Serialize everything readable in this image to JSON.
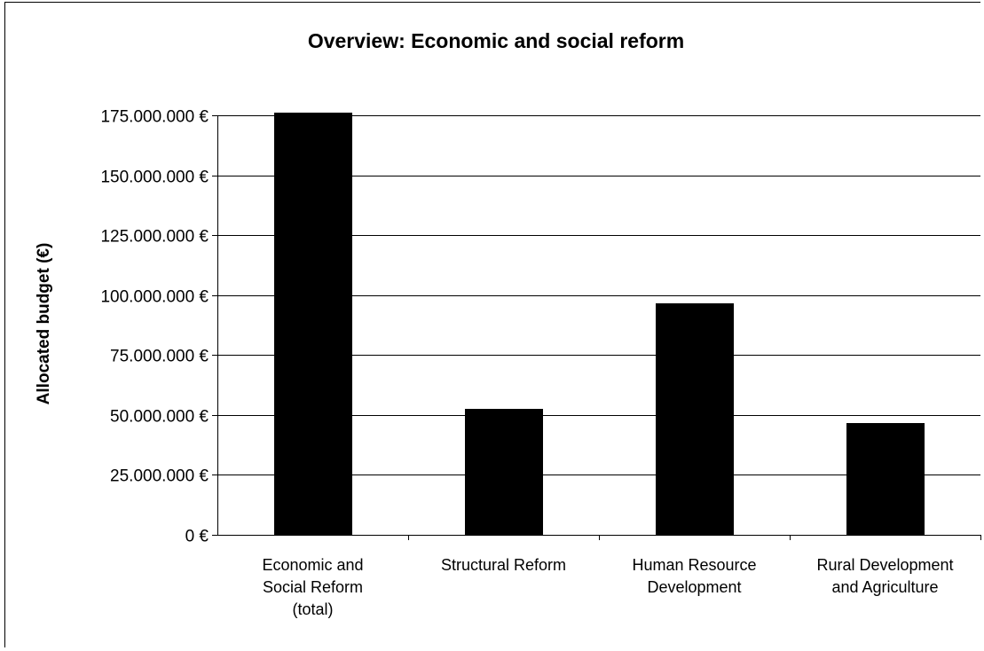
{
  "chart_data": {
    "type": "bar",
    "title": "Overview: Economic and social reform",
    "xlabel": "",
    "ylabel": "Allocated budget (€)",
    "categories": [
      "Economic and Social Reform (total)",
      "Structural Reform",
      "Human Resource Development",
      "Rural Development and Agriculture"
    ],
    "category_lines": [
      [
        "Economic and",
        "Social Reform",
        "(total)"
      ],
      [
        "Structural Reform"
      ],
      [
        "Human Resource",
        "Development"
      ],
      [
        "Rural Development",
        "and Agriculture"
      ]
    ],
    "values": [
      176000000,
      52500000,
      96500000,
      46500000
    ],
    "ylim": [
      0,
      175000000
    ],
    "yticks": [
      0,
      25000000,
      50000000,
      75000000,
      100000000,
      125000000,
      150000000,
      175000000
    ],
    "ytick_labels": [
      "0 €",
      "25.000.000 €",
      "50.000.000 €",
      "75.000.000 €",
      "100.000.000 €",
      "125.000.000 €",
      "150.000.000 €",
      "175.000.000 €"
    ],
    "grid": true,
    "legend": "none",
    "bar_color": "#000000",
    "grid_color": "#000000"
  }
}
